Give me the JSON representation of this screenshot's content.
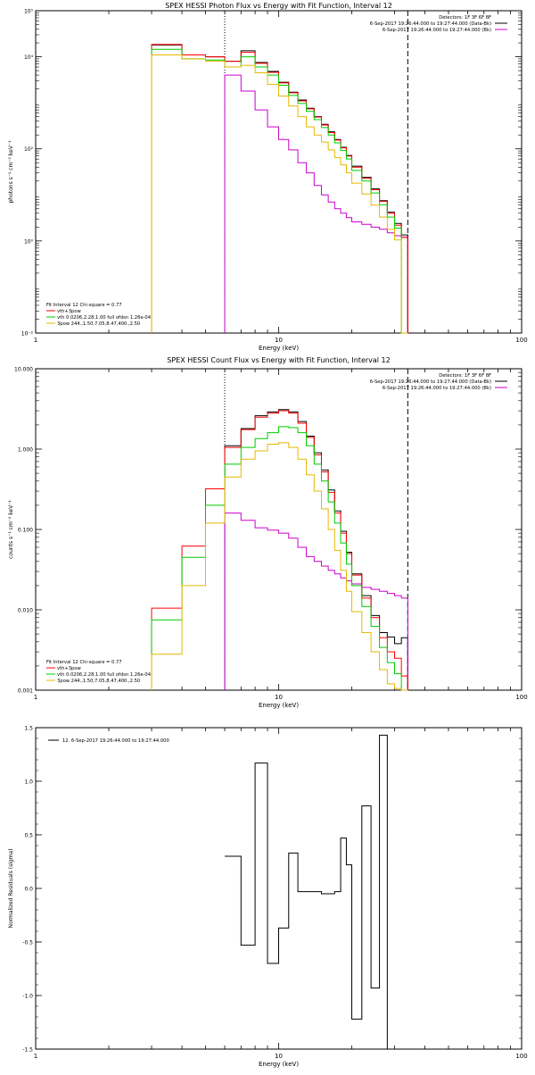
{
  "chart_data": [
    {
      "type": "line",
      "title": "SPEX HESSI Photon Flux vs Energy with Fit Function, Interval 12",
      "xlabel": "Energy (keV)",
      "ylabel": "photons s⁻¹ cm⁻² keV⁻¹",
      "xscale": "log",
      "yscale": "log",
      "xlim": [
        1,
        100
      ],
      "ylim": [
        0.01,
        100000
      ],
      "xticks": [
        1,
        10,
        100
      ],
      "xticklabels": [
        "1",
        "10",
        "100"
      ],
      "yticks": [
        0.01,
        1,
        100,
        10000,
        100000
      ],
      "yticklabels": [
        "10⁻²",
        "10⁰",
        "10²",
        "10⁴",
        "10⁵"
      ],
      "vlines": [
        {
          "x": 6.0,
          "style": "dotted"
        },
        {
          "x": 34.0,
          "style": "dashed"
        }
      ],
      "annotations": [
        "Detectors: 1F 3F 6F 8F",
        "6-Sep-2017 19:26:44.000 to 19:27:44.000 (Data-Bk)",
        "6-Sep-2017 19:26:44.000 to 19:27:44.000 (Bk)"
      ],
      "legend_position": "top-right",
      "legend": [
        "Data-Bk",
        "Bk"
      ],
      "fit_legend": [
        "Fit Interval 12   Chi-square = 0.77",
        "vth+3pow",
        "vth 0.0206,2.28,1.00  full ofdsn 1.26e-04",
        "3pow 244.,1.50,7.05,8.47,400.,2.50"
      ],
      "fit_legend_position": "bottom-left",
      "edges": [
        3.0,
        4.0,
        5.0,
        6.0,
        7.0,
        8.0,
        9.0,
        10.0,
        11.0,
        12.0,
        13.0,
        14.0,
        15.0,
        16.0,
        17.0,
        18.0,
        19.0,
        20.0,
        22.0,
        24.0,
        26.0,
        28.0,
        30.0,
        32.0,
        34.0
      ],
      "series": [
        {
          "color": "#000000",
          "values": [
            18000,
            11000,
            10000,
            8000,
            13500,
            7500,
            4800,
            2800,
            1700,
            1150,
            760,
            500,
            340,
            235,
            160,
            108,
            72,
            42,
            24,
            13.5,
            7.5,
            4.2,
            2.4,
            1.35
          ]
        },
        {
          "name": "Bk",
          "color": "#cc00cc",
          "values": [
            null,
            null,
            null,
            4000,
            1800,
            700,
            300,
            160,
            95,
            50,
            30,
            16,
            10,
            7,
            5,
            4,
            3.2,
            2.6,
            2.3,
            2,
            1.8,
            1.5,
            1.3,
            1.2
          ]
        },
        {
          "name": "vth+3pow",
          "color": "#ff0000",
          "values": [
            18500,
            11000,
            10000,
            8000,
            12500,
            7200,
            4600,
            2700,
            1650,
            1100,
            740,
            490,
            330,
            225,
            155,
            105,
            70,
            40,
            23,
            13,
            7.2,
            4,
            2.2,
            1.2
          ]
        },
        {
          "name": "vth 0.0206,2.28,1.00  full ofdsn 1.26e-04",
          "color": "#00cc00",
          "values": [
            14500,
            9000,
            8500,
            6000,
            10000,
            6000,
            4000,
            2400,
            1450,
            970,
            650,
            430,
            290,
            200,
            135,
            92,
            60,
            34,
            20,
            11,
            6.1,
            3.3,
            1.9,
            0.01
          ]
        },
        {
          "name": "3pow 244.,1.50,7.05,8.47,400.,2.50",
          "color": "#e6b800",
          "values": [
            11000,
            9000,
            8000,
            6000,
            6500,
            4500,
            2500,
            1400,
            850,
            500,
            300,
            200,
            140,
            95,
            65,
            45,
            30,
            18,
            10.5,
            6,
            3.3,
            1.8,
            1.05,
            0.01
          ]
        }
      ]
    },
    {
      "type": "line",
      "title": "SPEX HESSI Count Flux vs Energy with Fit Function, Interval 12",
      "xlabel": "Energy (keV)",
      "ylabel": "counts s⁻¹ cm⁻² keV⁻¹",
      "xscale": "log",
      "yscale": "log",
      "xlim": [
        1,
        100
      ],
      "ylim": [
        0.001,
        10
      ],
      "xticks": [
        1,
        10,
        100
      ],
      "xticklabels": [
        "1",
        "10",
        "100"
      ],
      "yticks": [
        0.001,
        0.01,
        0.1,
        1,
        10
      ],
      "yticklabels": [
        "0.001",
        "0.010",
        "0.100",
        "1.000",
        "10.000"
      ],
      "vlines": [
        {
          "x": 6.0,
          "style": "dotted"
        },
        {
          "x": 34.0,
          "style": "dashed"
        }
      ],
      "annotations": [
        "Detectors: 1F 3F 6F 8F",
        "6-Sep-2017 19:26:44.000 to 19:27:44.000 (Data-Bk)",
        "6-Sep-2017 19:26:44.000 to 19:27:44.000 (Bk)"
      ],
      "legend_position": "top-right",
      "legend": [
        "Data-Bk",
        "Bk"
      ],
      "fit_legend": [
        "Fit Interval 12   Chi-square = 0.77",
        "vth+3pow",
        "vth 0.0206,2.28,1.00  full ofdsn 1.26e-04",
        "3pow 244.,1.50,7.05,8.47,400.,2.50"
      ],
      "fit_legend_position": "bottom-left",
      "edges": [
        3.0,
        4.0,
        5.0,
        6.0,
        7.0,
        8.0,
        9.0,
        10.0,
        11.0,
        12.0,
        13.0,
        14.0,
        15.0,
        16.0,
        17.0,
        18.0,
        19.0,
        20.0,
        22.0,
        24.0,
        26.0,
        28.0,
        30.0,
        32.0,
        34.0
      ],
      "series": [
        {
          "color": "#000000",
          "values": [
            null,
            null,
            null,
            1.1,
            1.8,
            2.6,
            2.9,
            3.1,
            2.9,
            2.2,
            1.45,
            0.9,
            0.55,
            0.31,
            0.17,
            0.095,
            0.052,
            0.028,
            0.015,
            0.0085,
            0.0052,
            0.0046,
            0.0038,
            0.0045
          ]
        },
        {
          "name": "Bk",
          "color": "#cc00cc",
          "values": [
            null,
            null,
            null,
            0.16,
            0.13,
            0.105,
            0.098,
            0.09,
            0.078,
            0.06,
            0.046,
            0.04,
            0.035,
            0.031,
            0.028,
            0.025,
            0.023,
            0.021,
            0.019,
            0.018,
            0.017,
            0.016,
            0.015,
            0.014
          ]
        },
        {
          "name": "vth+3pow",
          "color": "#ff0000",
          "values": [
            0.0105,
            0.062,
            0.32,
            1.05,
            1.75,
            2.5,
            2.8,
            3.0,
            2.8,
            2.1,
            1.4,
            0.85,
            0.52,
            0.29,
            0.16,
            0.09,
            0.05,
            0.027,
            0.014,
            0.008,
            0.0045,
            0.003,
            0.0025,
            0.0015
          ]
        },
        {
          "name": "vth 0.0206,2.28,1.00  full ofdsn 1.26e-04",
          "color": "#00cc00",
          "values": [
            0.0075,
            0.045,
            0.2,
            0.65,
            1.05,
            1.35,
            1.6,
            1.9,
            1.85,
            1.6,
            1.1,
            0.65,
            0.4,
            0.22,
            0.12,
            0.068,
            0.037,
            0.02,
            0.011,
            0.0062,
            0.0034,
            0.0022,
            0.0016,
            0.001
          ]
        },
        {
          "name": "3pow 244.,1.50,7.05,8.47,400.,2.50",
          "color": "#e6b800",
          "values": [
            0.0028,
            0.02,
            0.12,
            0.45,
            0.75,
            0.95,
            1.15,
            1.2,
            1.05,
            0.75,
            0.48,
            0.3,
            0.18,
            0.1,
            0.055,
            0.031,
            0.017,
            0.0095,
            0.0052,
            0.003,
            0.0018,
            0.0012,
            0.00105,
            0.001
          ]
        }
      ]
    },
    {
      "type": "line",
      "title": "",
      "xlabel": "Energy (keV)",
      "ylabel": "Normalized Residuals (sigma)",
      "xscale": "log",
      "yscale": "linear",
      "xlim": [
        1,
        100
      ],
      "ylim": [
        -1.5,
        1.5
      ],
      "xticks": [
        1,
        10,
        100
      ],
      "xticklabels": [
        "1",
        "10",
        "100"
      ],
      "yticks": [
        -1.5,
        -1.0,
        -0.5,
        0.0,
        0.5,
        1.0,
        1.5
      ],
      "yticklabels": [
        "-1.5",
        "-1.0",
        "-0.5",
        "0.0",
        "0.5",
        "1.0",
        "1.5"
      ],
      "legend_position": "top-left",
      "legend": [
        "12.  6-Sep-2017 19:26:44.000 to 19:27:44.000"
      ],
      "edges": [
        6.0,
        7.0,
        8.0,
        9.0,
        10.0,
        11.0,
        12.0,
        13.0,
        14.0,
        15.0,
        16.0,
        17.0,
        18.0,
        19.0,
        20.0,
        22.0,
        24.0,
        26.0,
        28.0,
        30.0,
        32.0,
        34.0
      ],
      "series": [
        {
          "name": "12.  6-Sep-2017 19:26:44.000 to 19:27:44.000",
          "color": "#000000",
          "values": [
            0.3,
            -0.53,
            1.17,
            -0.7,
            -0.37,
            0.33,
            -0.03,
            -0.03,
            -0.03,
            -0.05,
            -0.05,
            -0.03,
            0.47,
            0.22,
            -1.22,
            0.77,
            -0.93,
            1.43,
            -1.5,
            -1.5,
            -1.5
          ]
        }
      ]
    }
  ]
}
